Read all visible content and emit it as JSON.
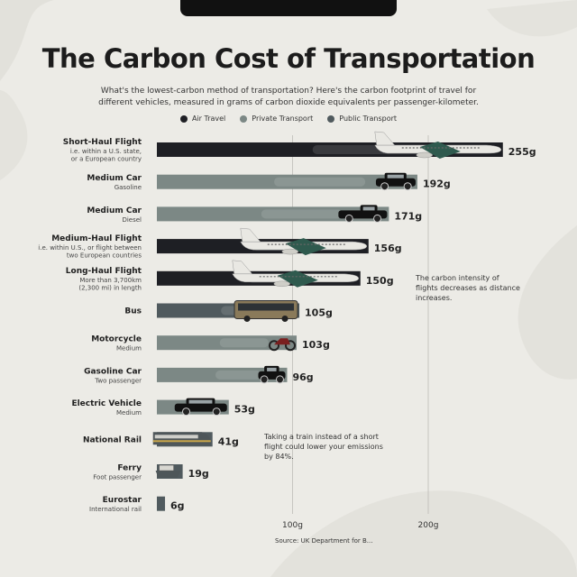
{
  "title": "The Carbon Cost of Transportation",
  "subtitle": "What's the lowest-carbon method of transportation? Here's the carbon footprint of travel for different vehicles, measured in grams of carbon dioxide equivalents per passenger-kilometer.",
  "legend": [
    {
      "label": "Air Travel",
      "color": "#1e1f24"
    },
    {
      "label": "Private Transport",
      "color": "#7c8885"
    },
    {
      "label": "Public Transport",
      "color": "#505a5e"
    }
  ],
  "annotations": {
    "flights": "The carbon intensity of flights decreases as distance increases.",
    "rail": "Taking a train instead of a short flight could lower your emissions by 84%."
  },
  "source": "Source: UK Department for B...",
  "chart_data": {
    "type": "bar",
    "orientation": "horizontal",
    "unit": "g",
    "xlim": [
      0,
      255
    ],
    "x_ticks": [
      {
        "value": 100,
        "label": "100g"
      },
      {
        "value": 200,
        "label": "200g"
      }
    ],
    "grid": true,
    "categories": [
      {
        "name": "Short-Haul Flight",
        "sub": [
          "i.e. within a U.S. state,",
          "or a European country"
        ],
        "value": 255,
        "label": "255g",
        "group": "Air Travel",
        "icon": "airplane-icon"
      },
      {
        "name": "Medium Car",
        "sub": [
          "Gasoline"
        ],
        "value": 192,
        "label": "192g",
        "group": "Private Transport",
        "icon": "suv-icon"
      },
      {
        "name": "Medium Car",
        "sub": [
          "Diesel"
        ],
        "value": 171,
        "label": "171g",
        "group": "Private Transport",
        "icon": "pickup-truck-icon"
      },
      {
        "name": "Medium-Haul Flight",
        "sub": [
          "i.e. within U.S., or flight between",
          "two European countries"
        ],
        "value": 156,
        "label": "156g",
        "group": "Air Travel",
        "icon": "airplane-icon"
      },
      {
        "name": "Long-Haul Flight",
        "sub": [
          "More than 3,700km",
          "(2,300 mi) in length"
        ],
        "value": 150,
        "label": "150g",
        "group": "Air Travel",
        "icon": "airplane-icon"
      },
      {
        "name": "Bus",
        "sub": [],
        "value": 105,
        "label": "105g",
        "group": "Public Transport",
        "icon": "bus-icon"
      },
      {
        "name": "Motorcycle",
        "sub": [
          "Medium"
        ],
        "value": 103,
        "label": "103g",
        "group": "Private Transport",
        "icon": "motorcycle-icon"
      },
      {
        "name": "Gasoline Car",
        "sub": [
          "Two passenger"
        ],
        "value": 96,
        "label": "96g",
        "group": "Private Transport",
        "icon": "small-car-icon"
      },
      {
        "name": "Electric Vehicle",
        "sub": [
          "Medium"
        ],
        "value": 53,
        "label": "53g",
        "group": "Private Transport",
        "icon": "sedan-icon"
      },
      {
        "name": "National Rail",
        "sub": [],
        "value": 41,
        "label": "41g",
        "group": "Public Transport",
        "icon": "train-icon"
      },
      {
        "name": "Ferry",
        "sub": [
          "Foot passenger"
        ],
        "value": 19,
        "label": "19g",
        "group": "Public Transport",
        "icon": "ferry-icon"
      },
      {
        "name": "Eurostar",
        "sub": [
          "International rail"
        ],
        "value": 6,
        "label": "6g",
        "group": "Public Transport",
        "icon": "eurostar-icon"
      }
    ]
  }
}
